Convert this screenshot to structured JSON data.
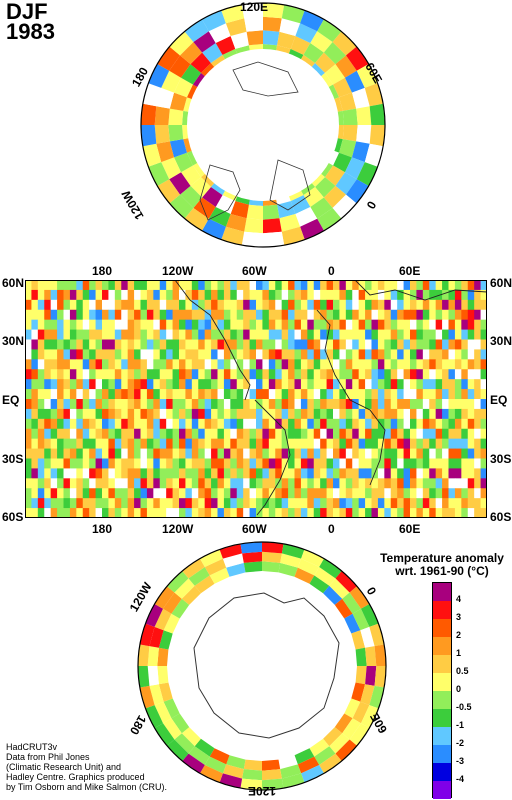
{
  "header": {
    "season": "DJF",
    "year": "1983"
  },
  "north_polar": {
    "labels": {
      "top": "120E",
      "upper_left": "180",
      "upper_right": "60E",
      "left": "120W",
      "right": "0"
    }
  },
  "world_map": {
    "top_lon_labels": [
      "180",
      "120W",
      "60W",
      "0",
      "60E"
    ],
    "bottom_lon_labels": [
      "180",
      "120W",
      "60W",
      "0",
      "60E"
    ],
    "left_lat_labels": [
      "60N",
      "30N",
      "EQ",
      "30S",
      "60S"
    ],
    "right_lat_labels": [
      "60N",
      "30N",
      "EQ",
      "30S",
      "60S"
    ]
  },
  "south_polar": {
    "labels": {
      "upper_left": "120W",
      "upper_right": "0",
      "lower_left": "180",
      "lower_right": "60E",
      "bottom": "120E"
    }
  },
  "legend": {
    "title_line1": "Temperature anomaly",
    "title_line2": "wrt. 1961-90  (°C)",
    "ticks": [
      "4",
      "3",
      "2",
      "1",
      "0.5",
      "0",
      "-0.5",
      "-1",
      "-2",
      "-3",
      "-4"
    ],
    "colors": [
      "#a8007e",
      "#ff1010",
      "#ff5a00",
      "#ff9a20",
      "#ffcc44",
      "#ffff6a",
      "#92ee5a",
      "#3ccd3c",
      "#60c8ff",
      "#2a8dff",
      "#0000e0",
      "#8000e8"
    ]
  },
  "credit": {
    "line1": "HadCRUT3v",
    "line2": "Data from Phil Jones",
    "line3": "(Climatic Research Unit) and",
    "line4": "Hadley Centre.  Graphics produced",
    "line5": "by Tim Osborn and Mike Salmon (CRU)."
  }
}
